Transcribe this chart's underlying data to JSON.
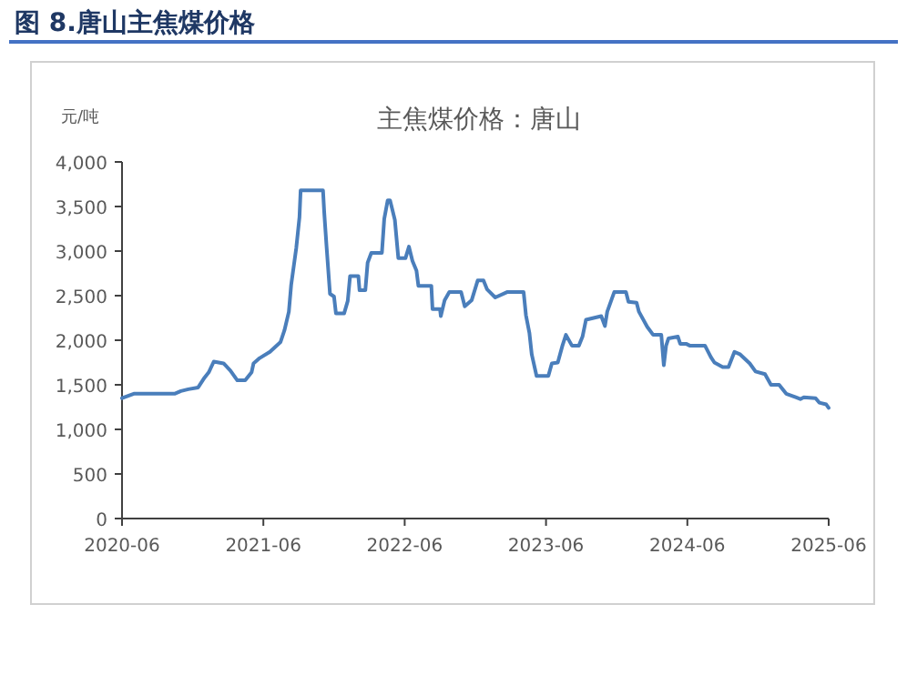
{
  "chart_data": {
    "type": "line",
    "title": "图 8.唐山主焦煤价格",
    "subtitle": "主焦煤价格：唐山",
    "ylabel": "元/吨",
    "xlim": [
      "2020-06",
      "2025-06"
    ],
    "xticks": [
      "2020-06",
      "2021-06",
      "2022-06",
      "2023-06",
      "2024-06",
      "2025-06"
    ],
    "ylim": [
      0,
      4000
    ],
    "yticks": [
      0,
      500,
      {
        "value": 1000,
        "label": "1,000"
      },
      {
        "value": 1500,
        "label": "1,500"
      },
      {
        "value": 2000,
        "label": "2,000"
      },
      {
        "value": 2500,
        "label": "2,500"
      },
      {
        "value": 3000,
        "label": "3,000"
      },
      {
        "value": 3500,
        "label": "3,500"
      },
      {
        "value": 4000,
        "label": "4,000"
      }
    ],
    "grid": false,
    "marker": "none",
    "line_style": "solid",
    "series": [
      {
        "color": "#4a7ebb",
        "x": [
          "2020-06-01",
          "2020-07-01",
          "2020-10-15",
          "2020-11-01",
          "2020-11-20",
          "2020-12-15",
          "2021-01-01",
          "2021-01-12",
          "2021-01-25",
          "2021-02-20",
          "2021-03-07",
          "2021-03-25",
          "2021-04-15",
          "2021-05-01",
          "2021-05-06",
          "2021-05-22",
          "2021-06-18",
          "2021-07-15",
          "2021-07-25",
          "2021-08-06",
          "2021-08-12",
          "2021-08-25",
          "2021-09-03",
          "2021-09-06",
          "2021-11-03",
          "2021-11-06",
          "2021-11-12",
          "2021-11-21",
          "2021-12-01",
          "2021-12-06",
          "2021-12-27",
          "2022-01-06",
          "2022-01-12",
          "2022-02-03",
          "2022-02-06",
          "2022-02-21",
          "2022-02-27",
          "2022-03-06",
          "2022-04-03",
          "2022-04-09",
          "2022-04-18",
          "2022-04-24",
          "2022-05-06",
          "2022-05-15",
          "2022-06-03",
          "2022-06-12",
          "2022-06-21",
          "2022-07-01",
          "2022-07-06",
          "2022-08-09",
          "2022-08-12",
          "2022-09-01",
          "2022-09-03",
          "2022-09-13",
          "2022-09-25",
          "2022-10-25",
          "2022-11-04",
          "2022-11-22",
          "2022-12-07",
          "2022-12-22",
          "2023-01-01",
          "2023-01-22",
          "2023-02-22",
          "2023-04-04",
          "2023-04-10",
          "2023-04-19",
          "2023-04-25",
          "2023-05-07",
          "2023-06-07",
          "2023-06-16",
          "2023-07-01",
          "2023-07-13",
          "2023-07-22",
          "2023-08-07",
          "2023-08-25",
          "2023-09-04",
          "2023-09-13",
          "2023-10-22",
          "2023-11-01",
          "2023-11-07",
          "2023-11-25",
          "2023-12-25",
          "2024-01-01",
          "2024-01-22",
          "2024-01-28",
          "2024-02-19",
          "2024-03-04",
          "2024-03-25",
          "2024-04-01",
          "2024-04-07",
          "2024-04-13",
          "2024-05-07",
          "2024-05-13",
          "2024-05-28",
          "2024-06-07",
          "2024-07-16",
          "2024-08-01",
          "2024-08-10",
          "2024-09-01",
          "2024-09-16",
          "2024-10-01",
          "2024-10-16",
          "2024-11-10",
          "2024-11-25",
          "2024-12-19",
          "2025-01-04",
          "2025-01-25",
          "2025-02-13",
          "2025-03-07",
          "2025-03-19",
          "2025-03-28",
          "2025-04-28",
          "2025-05-07",
          "2025-05-25",
          "2025-06-01"
        ],
        "values": [
          1350,
          1400,
          1400,
          1430,
          1450,
          1470,
          1580,
          1640,
          1760,
          1740,
          1660,
          1550,
          1550,
          1640,
          1740,
          1800,
          1870,
          1980,
          2110,
          2320,
          2620,
          3030,
          3380,
          3680,
          3680,
          3440,
          3060,
          2520,
          2490,
          2300,
          2300,
          2440,
          2720,
          2720,
          2560,
          2560,
          2870,
          2980,
          2980,
          3360,
          3570,
          3570,
          3350,
          2920,
          2920,
          3050,
          2890,
          2780,
          2610,
          2610,
          2350,
          2350,
          2270,
          2450,
          2540,
          2540,
          2380,
          2450,
          2670,
          2670,
          2570,
          2480,
          2540,
          2540,
          2280,
          2080,
          1840,
          1600,
          1600,
          1740,
          1750,
          1940,
          2060,
          1940,
          1940,
          2040,
          2230,
          2270,
          2160,
          2320,
          2540,
          2540,
          2430,
          2420,
          2320,
          2150,
          2060,
          2060,
          1720,
          1940,
          2020,
          2040,
          1960,
          1960,
          1940,
          1940,
          1810,
          1750,
          1700,
          1700,
          1870,
          1840,
          1740,
          1650,
          1620,
          1500,
          1500,
          1400,
          1360,
          1340,
          1360,
          1350,
          1300,
          1280,
          1240
        ]
      }
    ]
  }
}
